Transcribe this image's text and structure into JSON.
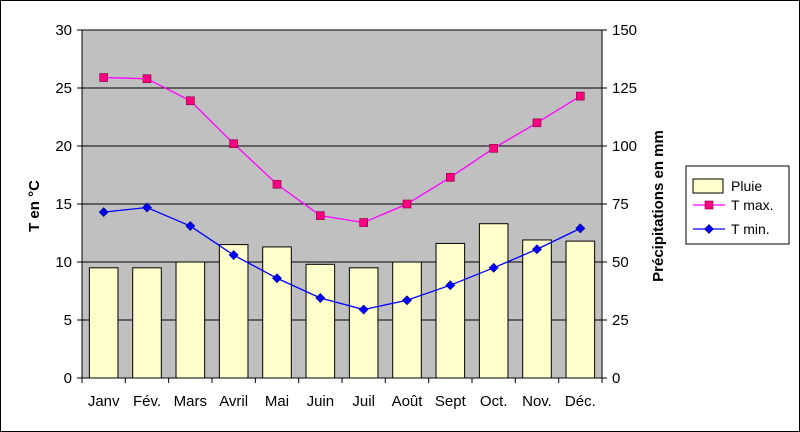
{
  "chart_data": {
    "type": "bar+line",
    "categories": [
      "Janv",
      "Fév.",
      "Mars",
      "Avril",
      "Mai",
      "Juin",
      "Juil",
      "Août",
      "Sept",
      "Oct.",
      "Nov.",
      "Déc."
    ],
    "ylabel_left": "T en °C",
    "ylabel_right": "Précipitations en mm",
    "ylim_left": [
      0,
      30
    ],
    "ylim_right": [
      0,
      150
    ],
    "yticks_left": [
      "0",
      "5",
      "10",
      "15",
      "20",
      "25",
      "30"
    ],
    "yticks_right": [
      "0",
      "25",
      "50",
      "75",
      "100",
      "125",
      "150"
    ],
    "grid": true,
    "legend_position": "right",
    "series": [
      {
        "name": "Pluie",
        "kind": "bar",
        "axis": "right",
        "color": "#ffffcc",
        "values": [
          47.5,
          47.5,
          50,
          57.5,
          56.5,
          49,
          47.5,
          50,
          58,
          66.5,
          59.5,
          59
        ]
      },
      {
        "name": "T max.",
        "kind": "line",
        "axis": "left",
        "color": "#ff00ff",
        "marker": "square",
        "marker_color": "#ff0080",
        "values": [
          25.9,
          25.8,
          23.9,
          20.2,
          16.7,
          14.0,
          13.4,
          15.0,
          17.3,
          19.8,
          22.0,
          24.3
        ]
      },
      {
        "name": "T min.",
        "kind": "line",
        "axis": "left",
        "color": "#0000ff",
        "marker": "diamond",
        "marker_color": "#0000ff",
        "values": [
          14.3,
          14.7,
          13.1,
          10.6,
          8.6,
          6.9,
          5.9,
          6.7,
          8.0,
          9.5,
          11.1,
          12.9
        ]
      }
    ]
  }
}
